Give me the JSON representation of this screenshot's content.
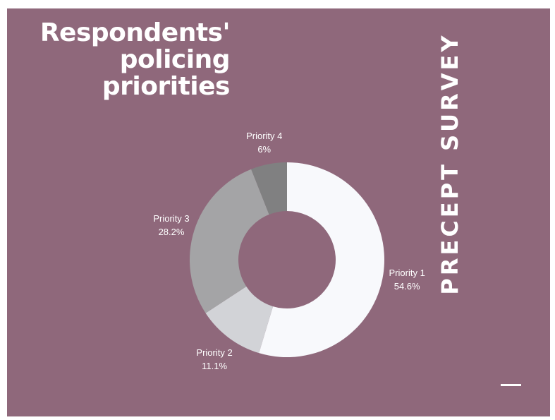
{
  "title": {
    "line1": "Respondents'",
    "line2": "policing",
    "line3": "priorities"
  },
  "side_label": "PRECEPT SURVEY",
  "colors": {
    "background": "#8f687b",
    "text": "#ffffff"
  },
  "chart_data": {
    "type": "pie",
    "style": "donut",
    "slices": [
      {
        "label": "Priority 1",
        "value": 54.6,
        "value_label": "54.6%",
        "color": "#f8f9fc"
      },
      {
        "label": "Priority 2",
        "value": 11.1,
        "value_label": "11.1%",
        "color": "#d2d3d7"
      },
      {
        "label": "Priority 3",
        "value": 28.2,
        "value_label": "28.2%",
        "color": "#a4a4a6"
      },
      {
        "label": "Priority 4",
        "value": 6,
        "value_label": "6%",
        "color": "#808081"
      }
    ],
    "start": "top",
    "direction": "clockwise"
  }
}
